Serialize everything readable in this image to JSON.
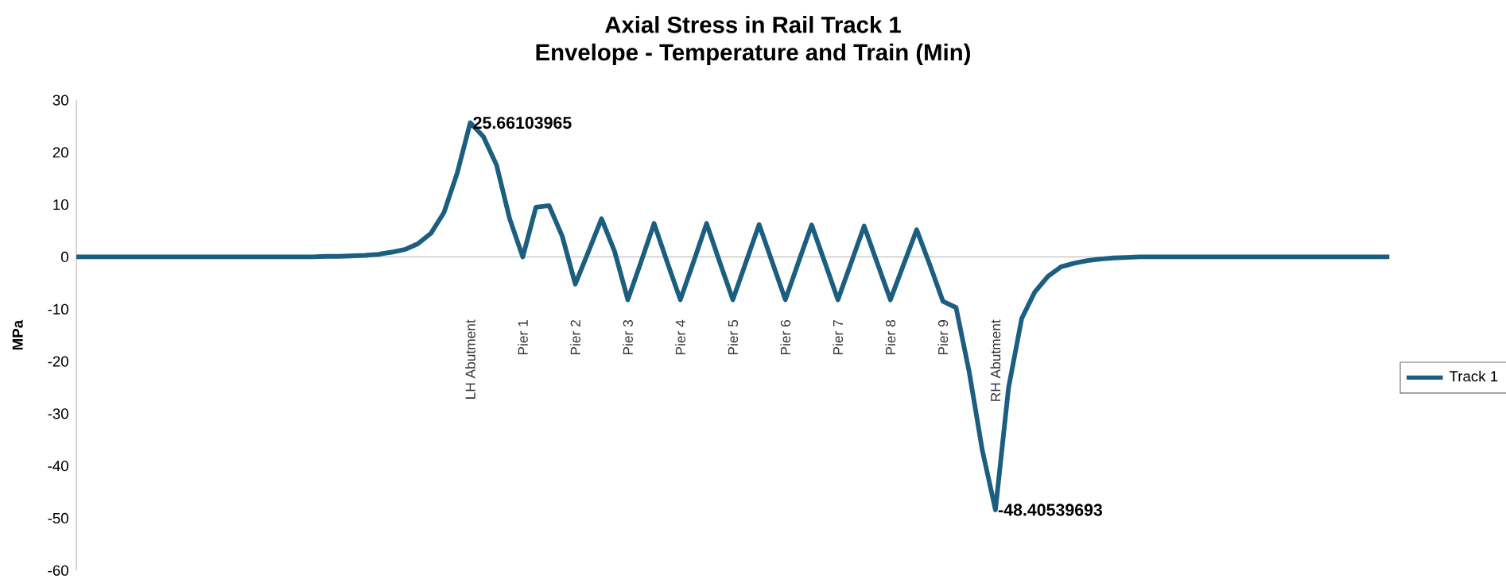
{
  "chart_data": {
    "type": "line",
    "title": "Axial Stress in Rail Track 1",
    "subtitle": "Envelope - Temperature and Train (Min)",
    "ylabel": "MPa",
    "categories": [
      null,
      null,
      null,
      null,
      null,
      null,
      null,
      null,
      null,
      null,
      null,
      null,
      null,
      null,
      null,
      null,
      null,
      null,
      null,
      null,
      null,
      null,
      null,
      null,
      null,
      null,
      null,
      null,
      null,
      null,
      "LH Abutment",
      null,
      null,
      null,
      "Pier 1",
      null,
      null,
      null,
      "Pier 2",
      null,
      null,
      null,
      "Pier 3",
      null,
      null,
      null,
      "Pier 4",
      null,
      null,
      null,
      "Pier 5",
      null,
      null,
      null,
      "Pier 6",
      null,
      null,
      null,
      "Pier 7",
      null,
      null,
      null,
      "Pier 8",
      null,
      null,
      null,
      "Pier 9",
      null,
      null,
      null,
      "RH Abutment",
      null,
      null,
      null,
      null,
      null,
      null,
      null,
      null,
      null,
      null,
      null,
      null,
      null,
      null,
      null,
      null,
      null,
      null,
      null,
      null,
      null,
      null,
      null,
      null,
      null,
      null,
      null,
      null,
      null,
      null
    ],
    "series": [
      {
        "name": "Track 1",
        "color": "#1b5e7f",
        "values": [
          0,
          0,
          0,
          0,
          0,
          0,
          0,
          0,
          0,
          0,
          0,
          0,
          0,
          0,
          0,
          0,
          0,
          0,
          0,
          0.1,
          0.1,
          0.2,
          0.3,
          0.5,
          0.9,
          1.4,
          2.5,
          4.5,
          8.5,
          16,
          25.66103965,
          23,
          17.6,
          7.3,
          0,
          9.5,
          9.8,
          4,
          -5.2,
          1,
          7.3,
          1,
          -8.2,
          -1,
          6.4,
          -1,
          -8.2,
          -1,
          6.4,
          -1,
          -8.2,
          -1,
          6.2,
          -1,
          -8.2,
          -1,
          6.1,
          -1,
          -8.2,
          -1.2,
          5.9,
          -1.2,
          -8.2,
          -1.5,
          5.2,
          -1.5,
          -8.5,
          -9.7,
          -22,
          -37,
          -48.40539693,
          -25,
          -11.8,
          -6.7,
          -3.7,
          -1.9,
          -1.2,
          -0.7,
          -0.4,
          -0.2,
          -0.1,
          0,
          0,
          0,
          0,
          0,
          0,
          0,
          0,
          0,
          0,
          0,
          0,
          0,
          0,
          0,
          0,
          0,
          0,
          0,
          0
        ],
        "value_labels": [
          null,
          null,
          null,
          null,
          null,
          null,
          null,
          null,
          null,
          null,
          null,
          null,
          null,
          null,
          null,
          null,
          null,
          null,
          null,
          null,
          null,
          null,
          null,
          null,
          null,
          null,
          null,
          null,
          null,
          null,
          "25.66103965",
          null,
          null,
          null,
          null,
          null,
          null,
          null,
          null,
          null,
          null,
          null,
          null,
          null,
          null,
          null,
          null,
          null,
          null,
          null,
          null,
          null,
          null,
          null,
          null,
          null,
          null,
          null,
          null,
          null,
          null,
          null,
          null,
          null,
          null,
          null,
          null,
          null,
          null,
          null,
          "-48.40539693",
          null,
          null,
          null,
          null,
          null,
          null,
          null,
          null,
          null,
          null,
          null,
          null,
          null,
          null,
          null,
          null,
          null,
          null,
          null,
          null,
          null,
          null,
          null,
          null,
          null,
          null,
          null,
          null,
          null,
          null
        ]
      }
    ],
    "ylim": [
      -60,
      30
    ],
    "yticks": [
      -60,
      -50,
      -40,
      -30,
      -20,
      -10,
      0,
      10,
      20,
      30
    ],
    "legend": "right"
  }
}
